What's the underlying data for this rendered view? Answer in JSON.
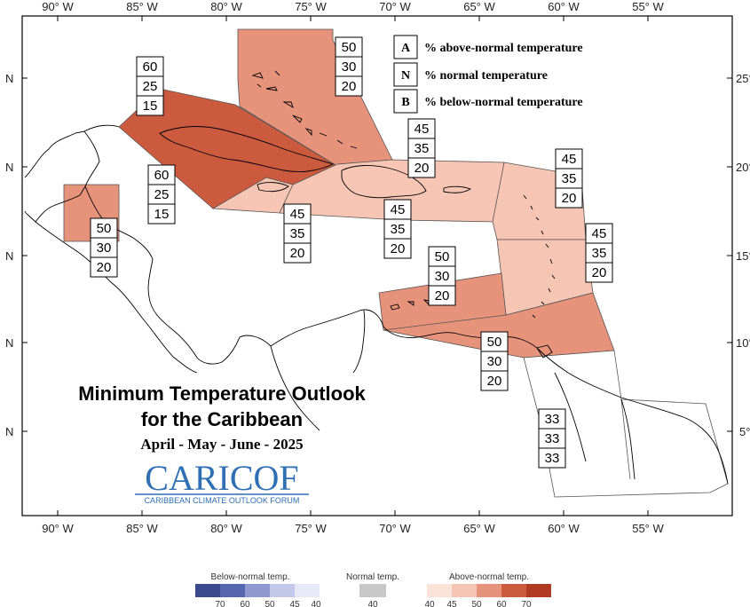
{
  "title": {
    "line1": "Minimum Temperature Outlook",
    "line2": "for the Caribbean",
    "period": "April - May - June - 2025"
  },
  "logo": {
    "main": "CARICOF",
    "sub": "CARIBBEAN CLIMATE OUTLOOK FORUM"
  },
  "axes": {
    "lon_top": [
      "90° W",
      "85° W",
      "80° W",
      "75° W",
      "70° W",
      "65° W",
      "60° W",
      "55° W"
    ],
    "lon_bottom": [
      "90° W",
      "85° W",
      "80° W",
      "75° W",
      "70° W",
      "65° W",
      "60° W",
      "55° W"
    ],
    "lat_left": [
      "N",
      "N",
      "N",
      "N",
      "N"
    ],
    "lat_right": [
      "25°",
      "20°",
      "15°",
      "10°",
      "5°"
    ]
  },
  "key": [
    {
      "letter": "A",
      "text": "% above-normal temperature"
    },
    {
      "letter": "N",
      "text": "% normal temperature"
    },
    {
      "letter": "B",
      "text": "% below-normal temperature"
    }
  ],
  "zones": [
    {
      "name": "bahamas",
      "probs": [
        "50",
        "30",
        "20"
      ],
      "color": "#e7937b"
    },
    {
      "name": "cuba-north",
      "probs": [
        "60",
        "25",
        "15"
      ],
      "color": "#cc5a3f"
    },
    {
      "name": "cuba-south",
      "probs": [
        "60",
        "25",
        "15"
      ],
      "color": "#cc5a3f"
    },
    {
      "name": "belize",
      "probs": [
        "50",
        "30",
        "20"
      ],
      "color": "#e7937b"
    },
    {
      "name": "jamaica",
      "probs": [
        "45",
        "35",
        "20"
      ],
      "color": "#f6c5b3"
    },
    {
      "name": "hispaniola",
      "probs": [
        "45",
        "35",
        "20"
      ],
      "color": "#f6c5b3"
    },
    {
      "name": "turks-caicos",
      "probs": [
        "45",
        "35",
        "20"
      ],
      "color": "#f6c5b3"
    },
    {
      "name": "leeward-islands",
      "probs": [
        "45",
        "35",
        "20"
      ],
      "color": "#f6c5b3"
    },
    {
      "name": "windward-islands",
      "probs": [
        "45",
        "35",
        "20"
      ],
      "color": "#f6c5b3"
    },
    {
      "name": "abc-islands",
      "probs": [
        "50",
        "30",
        "20"
      ],
      "color": "#e7937b"
    },
    {
      "name": "trinidad",
      "probs": [
        "50",
        "30",
        "20"
      ],
      "color": "#e7937b"
    },
    {
      "name": "guianas",
      "probs": [
        "33",
        "33",
        "33"
      ],
      "color": "#ffffff"
    }
  ],
  "scale": {
    "below": {
      "title": "Below-normal temp.",
      "labels": [
        "70",
        "60",
        "50",
        "45",
        "40"
      ],
      "colors": [
        "#3a4a8c",
        "#5666b0",
        "#8f98cf",
        "#c3c8e8",
        "#e7e9f6"
      ]
    },
    "normal": {
      "title": "Normal temp.",
      "labels": [
        "40"
      ],
      "colors": [
        "#c8c8c8"
      ]
    },
    "above": {
      "title": "Above-normal temp.",
      "labels": [
        "40",
        "45",
        "50",
        "60",
        "70"
      ],
      "colors": [
        "#fbe3da",
        "#f6c5b3",
        "#e7937b",
        "#cc5a3f",
        "#b13a23"
      ]
    }
  }
}
